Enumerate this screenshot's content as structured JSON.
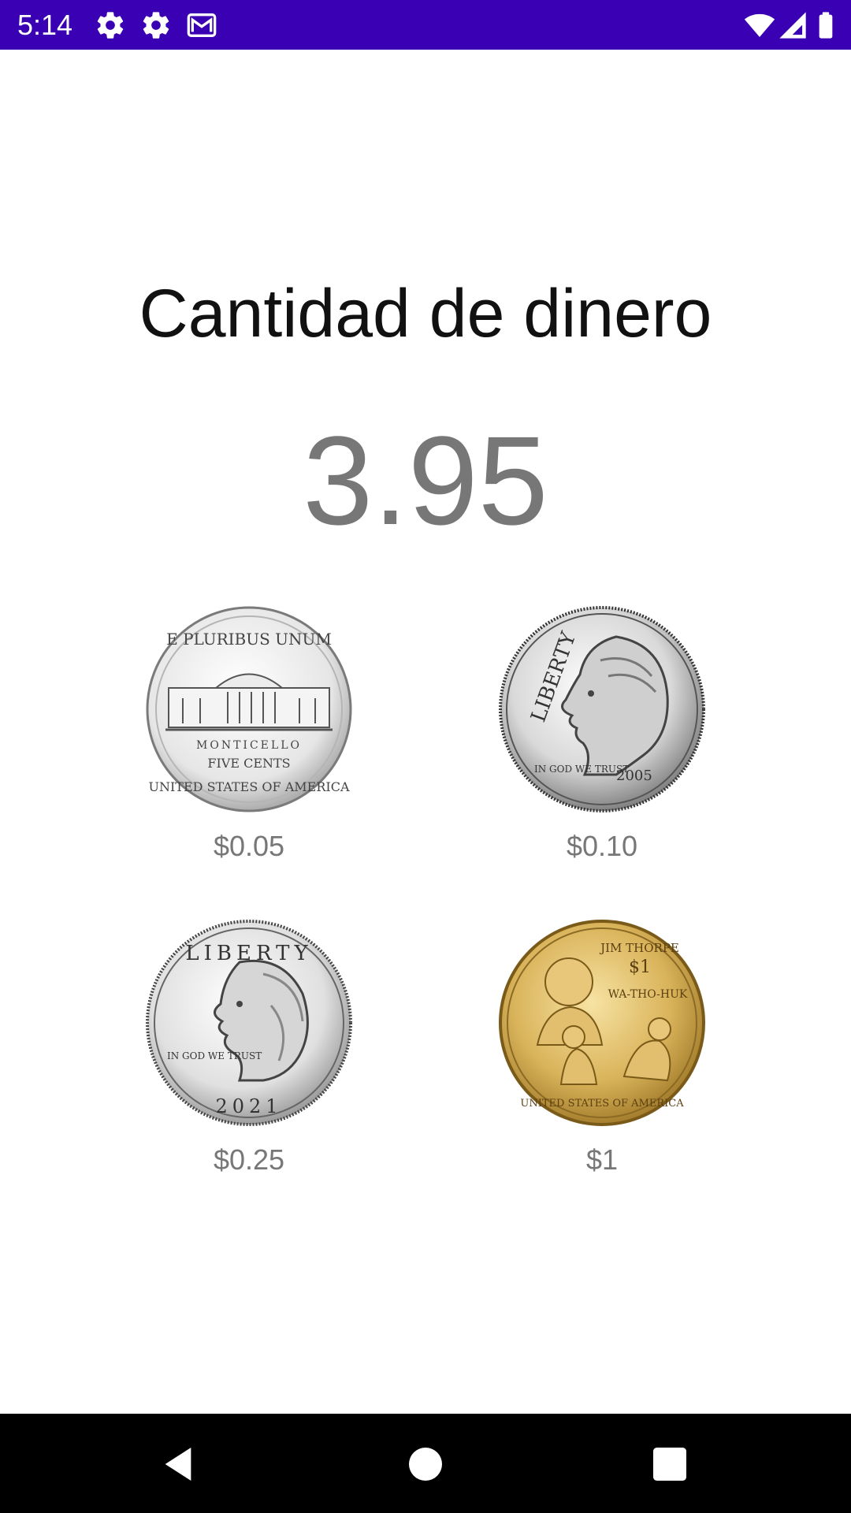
{
  "status_bar": {
    "time": "5:14",
    "background_color": "#3A00B3",
    "left_icons": [
      "settings-icon",
      "settings-icon",
      "gmail-icon"
    ],
    "right_icons": [
      "wifi-icon",
      "signal-icon",
      "battery-icon"
    ]
  },
  "main": {
    "title": "Cantidad de dinero",
    "amount": "3.95"
  },
  "coins": [
    {
      "name": "nickel",
      "label": "$0.05",
      "engraving_top": "E PLURIBUS UNUM",
      "engraving_mid": "MONTICELLO",
      "engraving_sub": "FIVE CENTS",
      "engraving_bottom": "UNITED STATES OF AMERICA"
    },
    {
      "name": "dime",
      "label": "$0.10",
      "engraving_top": "LIBERTY",
      "engraving_sub": "IN GOD WE TRUST",
      "engraving_year": "2005"
    },
    {
      "name": "quarter",
      "label": "$0.25",
      "engraving_top": "LIBERTY",
      "engraving_sub": "IN GOD WE TRUST",
      "engraving_year": "2021"
    },
    {
      "name": "dollar",
      "label": "$1",
      "engraving_top": "JIM THORPE",
      "engraving_value": "$1",
      "engraving_mid": "WA-THO-HUK",
      "engraving_bottom": "UNITED STATES OF AMERICA"
    }
  ],
  "nav_bar": {
    "buttons": [
      "back-icon",
      "home-icon",
      "recents-icon"
    ]
  }
}
